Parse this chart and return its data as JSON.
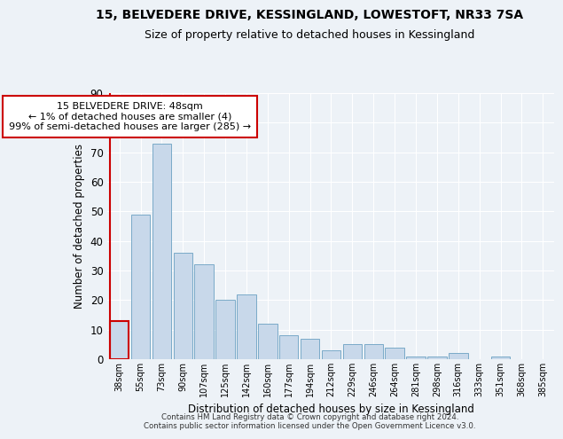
{
  "title": "15, BELVEDERE DRIVE, KESSINGLAND, LOWESTOFT, NR33 7SA",
  "subtitle": "Size of property relative to detached houses in Kessingland",
  "xlabel": "Distribution of detached houses by size in Kessingland",
  "ylabel": "Number of detached properties",
  "categories": [
    "38sqm",
    "55sqm",
    "73sqm",
    "90sqm",
    "107sqm",
    "125sqm",
    "142sqm",
    "160sqm",
    "177sqm",
    "194sqm",
    "212sqm",
    "229sqm",
    "246sqm",
    "264sqm",
    "281sqm",
    "298sqm",
    "316sqm",
    "333sqm",
    "351sqm",
    "368sqm",
    "385sqm"
  ],
  "values": [
    13,
    49,
    73,
    36,
    32,
    20,
    22,
    12,
    8,
    7,
    3,
    5,
    5,
    4,
    1,
    1,
    2,
    0,
    1,
    0,
    0
  ],
  "bar_color": "#c8d8ea",
  "bar_edge_color": "#7aaac8",
  "highlight_edge_color": "#cc0000",
  "annotation_line1": "15 BELVEDERE DRIVE: 48sqm",
  "annotation_line2": "← 1% of detached houses are smaller (4)",
  "annotation_line3": "99% of semi-detached houses are larger (285) →",
  "annotation_box_color": "white",
  "annotation_box_edge": "#cc0000",
  "ylim": [
    0,
    90
  ],
  "yticks": [
    0,
    10,
    20,
    30,
    40,
    50,
    60,
    70,
    80,
    90
  ],
  "footer_line1": "Contains HM Land Registry data © Crown copyright and database right 2024.",
  "footer_line2": "Contains public sector information licensed under the Open Government Licence v3.0.",
  "background_color": "#edf2f7",
  "grid_color": "#ffffff",
  "title_fontsize": 10,
  "subtitle_fontsize": 9
}
